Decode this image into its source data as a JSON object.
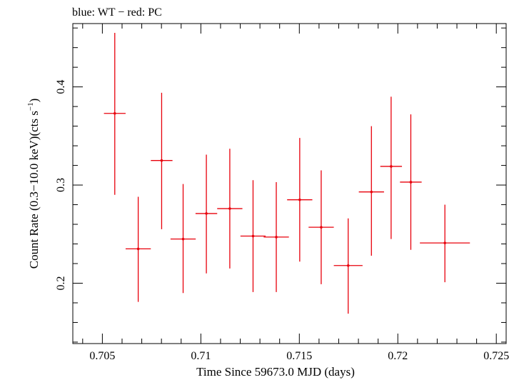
{
  "chart_data": {
    "type": "scatter",
    "title": "blue: WT − red: PC",
    "xlabel": "Time Since 59673.0 MJD (days)",
    "ylabel_main": "Count Rate (0.3−10.0 keV)(cts s",
    "ylabel_exp": "−1",
    "ylabel_close": ")",
    "xlim": [
      0.7035,
      0.7255
    ],
    "ylim": [
      0.1385,
      0.4645
    ],
    "x_ticks": [
      0.705,
      0.71,
      0.715,
      0.72,
      0.725
    ],
    "x_tick_labels": [
      "0.705",
      "0.71",
      "0.715",
      "0.72",
      "0.725"
    ],
    "y_ticks": [
      0.2,
      0.3,
      0.4
    ],
    "y_tick_labels": [
      "0.2",
      "0.3",
      "0.4"
    ],
    "grid": false,
    "colors": {
      "PC": "#e8000b",
      "axes": "#000000"
    },
    "series": [
      {
        "name": "PC",
        "points": [
          {
            "x": 0.70563,
            "xerr": 0.00055,
            "y": 0.373,
            "ylo": 0.29,
            "yhi": 0.455
          },
          {
            "x": 0.70682,
            "xerr": 0.00064,
            "y": 0.235,
            "ylo": 0.181,
            "yhi": 0.288
          },
          {
            "x": 0.70801,
            "xerr": 0.00055,
            "y": 0.325,
            "ylo": 0.255,
            "yhi": 0.394
          },
          {
            "x": 0.7091,
            "xerr": 0.00064,
            "y": 0.245,
            "ylo": 0.19,
            "yhi": 0.301
          },
          {
            "x": 0.71028,
            "xerr": 0.00055,
            "y": 0.271,
            "ylo": 0.21,
            "yhi": 0.331
          },
          {
            "x": 0.71147,
            "xerr": 0.00064,
            "y": 0.276,
            "ylo": 0.215,
            "yhi": 0.337
          },
          {
            "x": 0.71265,
            "xerr": 0.00064,
            "y": 0.248,
            "ylo": 0.191,
            "yhi": 0.305
          },
          {
            "x": 0.71383,
            "xerr": 0.00064,
            "y": 0.247,
            "ylo": 0.191,
            "yhi": 0.303
          },
          {
            "x": 0.71502,
            "xerr": 0.00064,
            "y": 0.285,
            "ylo": 0.222,
            "yhi": 0.348
          },
          {
            "x": 0.71611,
            "xerr": 0.00064,
            "y": 0.257,
            "ylo": 0.199,
            "yhi": 0.315
          },
          {
            "x": 0.71748,
            "xerr": 0.00073,
            "y": 0.218,
            "ylo": 0.169,
            "yhi": 0.266
          },
          {
            "x": 0.71866,
            "xerr": 0.00064,
            "y": 0.293,
            "ylo": 0.228,
            "yhi": 0.36
          },
          {
            "x": 0.71966,
            "xerr": 0.00055,
            "y": 0.319,
            "ylo": 0.245,
            "yhi": 0.39
          },
          {
            "x": 0.72066,
            "xerr": 0.00055,
            "y": 0.303,
            "ylo": 0.234,
            "yhi": 0.372
          },
          {
            "x": 0.72239,
            "xerr": 0.00127,
            "y": 0.241,
            "ylo": 0.201,
            "yhi": 0.28
          }
        ]
      }
    ]
  }
}
